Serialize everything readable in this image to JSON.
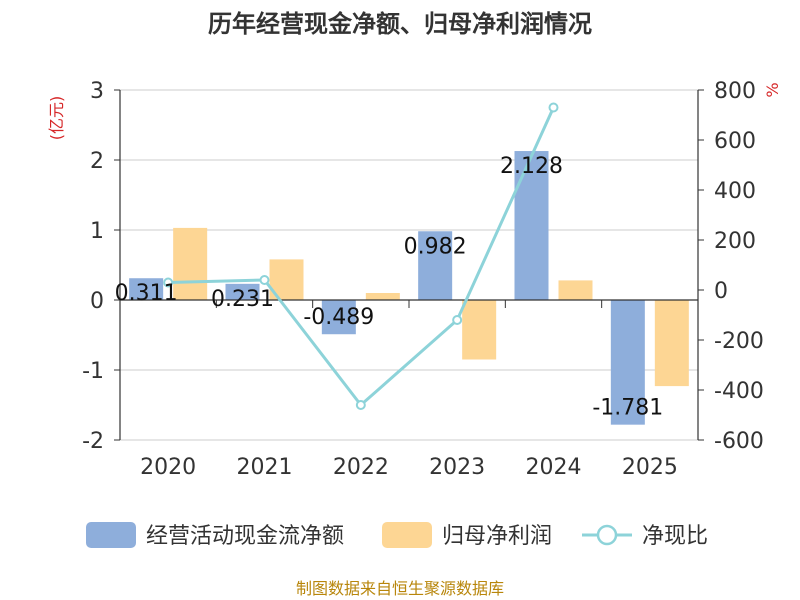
{
  "chart_data": {
    "type": "bar",
    "title": "历年经营现金净额、归母净利润情况",
    "categories": [
      "2020",
      "2021",
      "2022",
      "2023",
      "2024",
      "2025"
    ],
    "series": [
      {
        "name": "经营活动现金流净额",
        "type": "bar",
        "axis": "left",
        "color": "#8eaedb",
        "values": [
          0.311,
          0.231,
          -0.489,
          0.982,
          2.128,
          -1.781
        ],
        "labels": [
          "0.311",
          "0.231",
          "-0.489",
          "0.982",
          "2.128",
          "-1.781"
        ]
      },
      {
        "name": "归母净利润",
        "type": "bar",
        "axis": "left",
        "color": "#fdd694",
        "values": [
          1.03,
          0.58,
          0.1,
          -0.85,
          0.28,
          -1.23
        ]
      },
      {
        "name": "净现比",
        "type": "line",
        "axis": "right",
        "color": "#8dd3d9",
        "values": [
          30,
          40,
          -460,
          -120,
          730,
          null
        ]
      }
    ],
    "left_axis": {
      "unit": "(亿元)",
      "ylim": [
        -2,
        3
      ],
      "ticks": [
        "-2",
        "-1",
        "0",
        "1",
        "2",
        "3"
      ]
    },
    "right_axis": {
      "unit": "%",
      "ylim": [
        -600,
        800
      ],
      "ticks": [
        "-600",
        "-400",
        "-200",
        "0",
        "200",
        "400",
        "600",
        "800"
      ]
    },
    "grid": true,
    "legend_position": "bottom"
  },
  "source": "制图数据来自恒生聚源数据库"
}
